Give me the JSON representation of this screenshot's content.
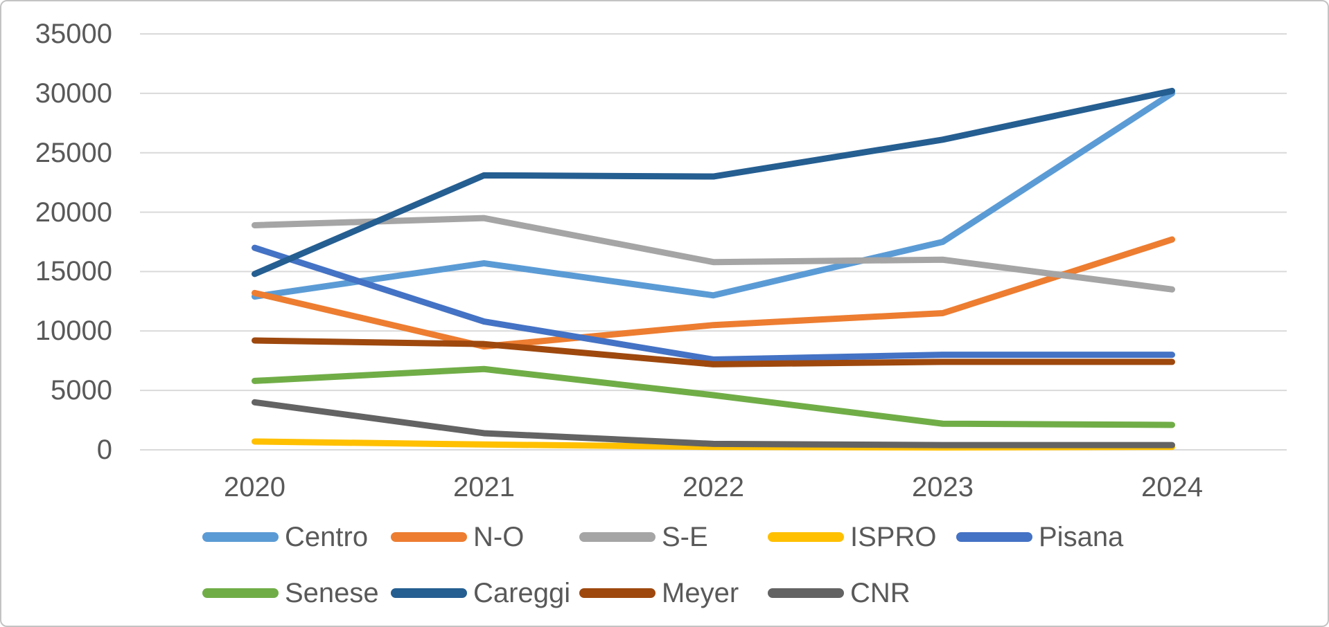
{
  "chart_data": {
    "type": "line",
    "categories": [
      "2020",
      "2021",
      "2022",
      "2023",
      "2024"
    ],
    "series": [
      {
        "name": "Centro",
        "color": "#5B9BD5",
        "values": [
          12900,
          15700,
          13000,
          17500,
          30000
        ]
      },
      {
        "name": "N-O",
        "color": "#ED7D31",
        "values": [
          13200,
          8700,
          10500,
          11500,
          17700
        ]
      },
      {
        "name": "S-E",
        "color": "#A5A5A5",
        "values": [
          18900,
          19500,
          15800,
          16000,
          13500
        ]
      },
      {
        "name": "ISPRO",
        "color": "#FFC000",
        "values": [
          700,
          450,
          250,
          200,
          250
        ]
      },
      {
        "name": "Pisana",
        "color": "#4472C4",
        "values": [
          17000,
          10800,
          7600,
          8000,
          8000
        ]
      },
      {
        "name": "Senese",
        "color": "#70AD47",
        "values": [
          5800,
          6800,
          4600,
          2200,
          2100
        ]
      },
      {
        "name": "Careggi",
        "color": "#255E91",
        "values": [
          14800,
          23100,
          23000,
          26100,
          30200
        ]
      },
      {
        "name": "Meyer",
        "color": "#9E480E",
        "values": [
          9200,
          8900,
          7200,
          7400,
          7400
        ]
      },
      {
        "name": "CNR",
        "color": "#636363",
        "values": [
          4000,
          1400,
          500,
          400,
          400
        ]
      }
    ],
    "title": "",
    "xlabel": "",
    "ylabel": "",
    "y_axis": {
      "min": 0,
      "max": 35000,
      "step": 5000,
      "tick_labels": [
        "35000",
        "30000",
        "25000",
        "20000",
        "15000",
        "10000",
        "5000",
        "0"
      ]
    },
    "grid": true,
    "legend_position": "bottom",
    "legend_rows": [
      [
        "Centro",
        "N-O",
        "S-E",
        "ISPRO",
        "Pisana"
      ],
      [
        "Senese",
        "Careggi",
        "Meyer",
        "CNR"
      ]
    ]
  },
  "colors": {
    "grid": "#D9D9D9",
    "axis_text": "#595959",
    "background": "#FFFFFF",
    "border": "#C3C3C3"
  }
}
